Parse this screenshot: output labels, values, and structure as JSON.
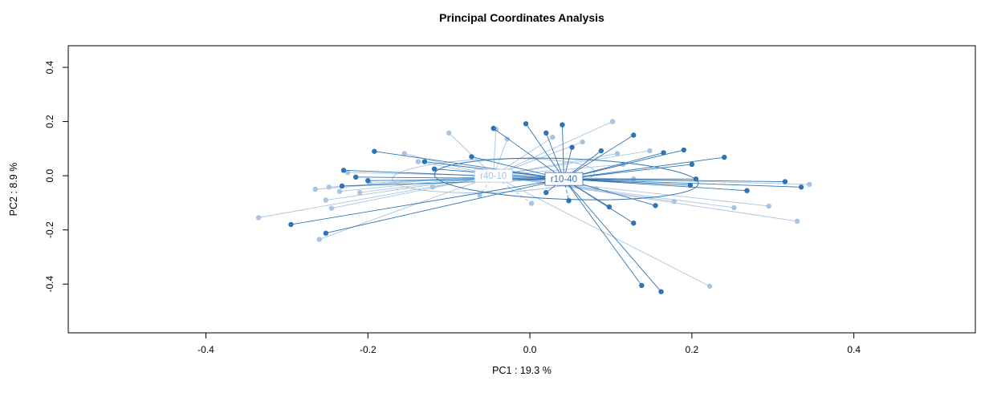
{
  "chart_data": {
    "type": "scatter",
    "title": "Principal Coordinates Analysis",
    "xlabel": "PC1 :  19.3 %",
    "ylabel": "PC2 :  8.9 %",
    "xlim": [
      -0.57,
      0.55
    ],
    "ylim": [
      -0.58,
      0.48
    ],
    "xticks": [
      "-0.4",
      "-0.2",
      "0.0",
      "0.2",
      "0.4"
    ],
    "yticks": [
      "-0.4",
      "-0.2",
      "0.0",
      "0.2",
      "0.4"
    ],
    "grid": false,
    "legend": "none (group labels drawn at centroids)",
    "series": [
      {
        "name": "r40-10",
        "color": "#a9c4e0",
        "centroid": [
          -0.045,
          0.0
        ],
        "ellipse": {
          "cx": -0.045,
          "cy": 0.0,
          "rx": 0.125,
          "ry": 0.062,
          "rotation": -2
        },
        "points": [
          [
            -0.335,
            -0.155
          ],
          [
            -0.26,
            -0.235
          ],
          [
            -0.245,
            -0.12
          ],
          [
            -0.265,
            -0.05
          ],
          [
            -0.248,
            -0.042
          ],
          [
            -0.235,
            -0.058
          ],
          [
            -0.225,
            0.012
          ],
          [
            -0.21,
            -0.062
          ],
          [
            -0.198,
            -0.028
          ],
          [
            -0.155,
            0.082
          ],
          [
            -0.138,
            0.052
          ],
          [
            -0.1,
            0.158
          ],
          [
            -0.042,
            0.172
          ],
          [
            -0.028,
            0.135
          ],
          [
            0.028,
            0.142
          ],
          [
            0.065,
            0.125
          ],
          [
            0.102,
            0.2
          ],
          [
            0.108,
            0.082
          ],
          [
            0.148,
            0.092
          ],
          [
            0.115,
            0.042
          ],
          [
            0.082,
            -0.048
          ],
          [
            0.128,
            -0.012
          ],
          [
            0.178,
            -0.095
          ],
          [
            0.222,
            -0.408
          ],
          [
            0.252,
            -0.118
          ],
          [
            0.295,
            -0.112
          ],
          [
            0.33,
            -0.168
          ],
          [
            0.345,
            -0.032
          ],
          [
            -0.12,
            -0.042
          ],
          [
            -0.062,
            -0.072,
            1
          ],
          [
            0.002,
            -0.102,
            1
          ],
          [
            -0.252,
            -0.09
          ]
        ]
      },
      {
        "name": "r10-40",
        "color": "#2e74b5",
        "centroid": [
          0.042,
          -0.012
        ],
        "ellipse": {
          "cx": 0.045,
          "cy": -0.012,
          "rx": 0.163,
          "ry": 0.075,
          "rotation": 2
        },
        "points": [
          [
            -0.295,
            -0.18
          ],
          [
            -0.252,
            -0.212
          ],
          [
            -0.23,
            0.02
          ],
          [
            -0.232,
            -0.038
          ],
          [
            -0.215,
            -0.005
          ],
          [
            -0.2,
            -0.018
          ],
          [
            -0.192,
            0.09
          ],
          [
            -0.13,
            0.052
          ],
          [
            -0.118,
            0.025
          ],
          [
            -0.072,
            0.07
          ],
          [
            -0.045,
            0.175
          ],
          [
            -0.005,
            0.192
          ],
          [
            0.02,
            0.158
          ],
          [
            0.04,
            0.188
          ],
          [
            0.052,
            0.105
          ],
          [
            0.088,
            0.092
          ],
          [
            0.128,
            0.15
          ],
          [
            0.165,
            0.085
          ],
          [
            0.19,
            0.095
          ],
          [
            0.2,
            0.042
          ],
          [
            0.24,
            0.068
          ],
          [
            0.205,
            -0.012
          ],
          [
            0.198,
            -0.035
          ],
          [
            0.268,
            -0.055
          ],
          [
            0.315,
            -0.022
          ],
          [
            0.335,
            -0.042
          ],
          [
            0.128,
            -0.175
          ],
          [
            0.138,
            -0.405
          ],
          [
            0.162,
            -0.428
          ],
          [
            0.098,
            -0.115
          ],
          [
            0.155,
            -0.11
          ],
          [
            0.048,
            -0.092,
            1
          ],
          [
            0.02,
            -0.062
          ]
        ]
      }
    ]
  }
}
